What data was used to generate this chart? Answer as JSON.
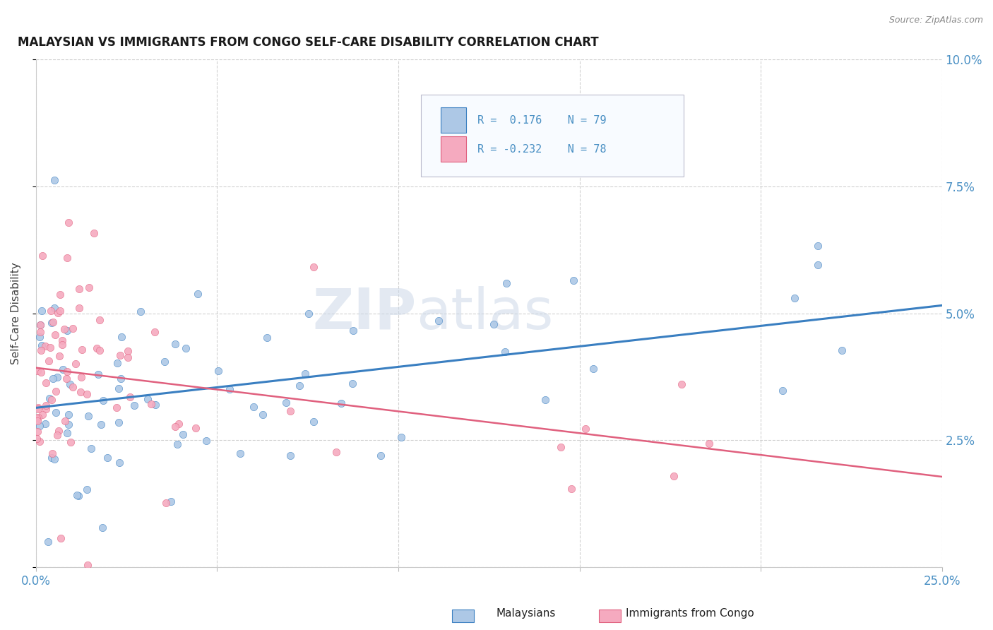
{
  "title": "MALAYSIAN VS IMMIGRANTS FROM CONGO SELF-CARE DISABILITY CORRELATION CHART",
  "source": "Source: ZipAtlas.com",
  "ylabel": "Self-Care Disability",
  "xlim": [
    0.0,
    0.25
  ],
  "ylim": [
    0.0,
    0.1
  ],
  "xtick_vals": [
    0.0,
    0.05,
    0.1,
    0.15,
    0.2,
    0.25
  ],
  "xtick_labels": [
    "0.0%",
    "",
    "",
    "",
    "",
    "25.0%"
  ],
  "ytick_vals": [
    0.0,
    0.025,
    0.05,
    0.075,
    0.1
  ],
  "ytick_labels": [
    "",
    "2.5%",
    "5.0%",
    "7.5%",
    "10.0%"
  ],
  "R_malaysian": 0.176,
  "N_malaysian": 79,
  "R_congo": -0.232,
  "N_congo": 78,
  "color_malaysian": "#adc8e6",
  "color_congo": "#f5aabf",
  "line_color_malaysian": "#3a7fc1",
  "line_color_congo": "#e0607e",
  "legend_label_malaysian": "Malaysians",
  "legend_label_congo": "Immigrants from Congo",
  "watermark_zip": "ZIP",
  "watermark_atlas": "atlas",
  "bg_color": "#ffffff",
  "grid_color": "#cccccc",
  "tick_color": "#4a90c4",
  "title_color": "#1a1a1a",
  "ylabel_color": "#444444",
  "source_color": "#888888"
}
